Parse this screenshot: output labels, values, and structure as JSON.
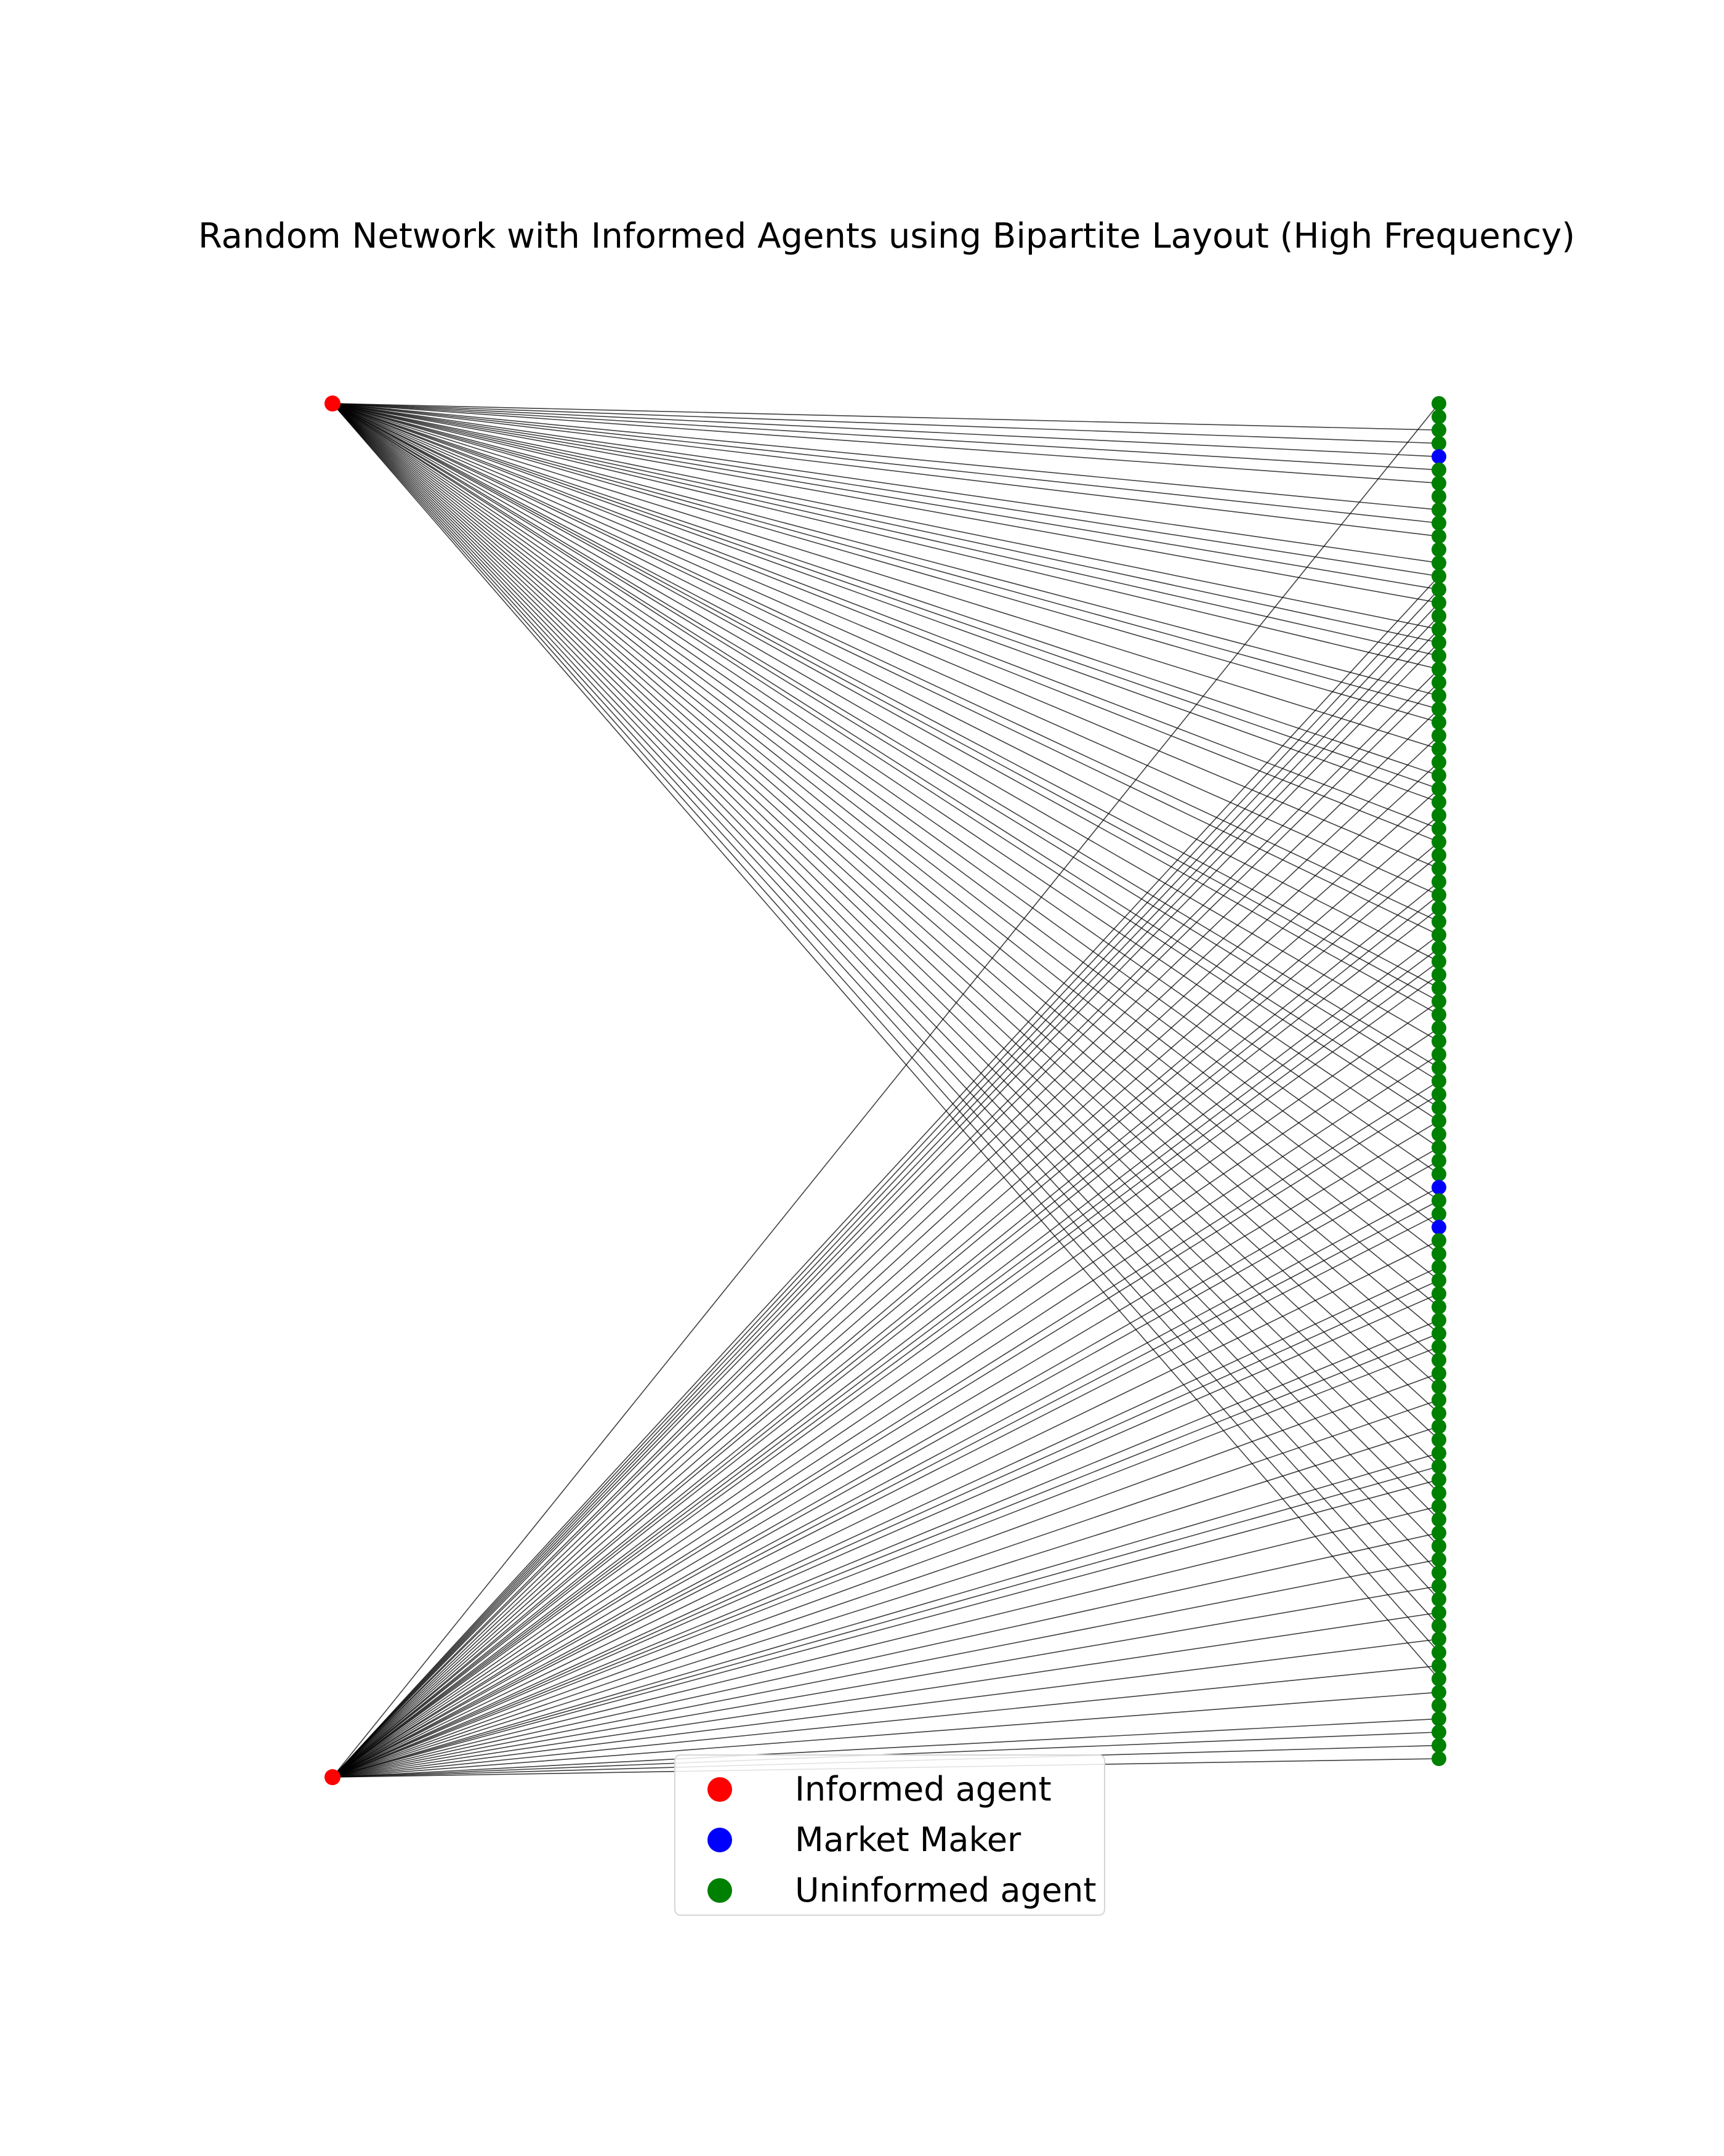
{
  "title": "Random Network with Informed Agents using Bipartite Layout (High Frequency)",
  "colors": {
    "informed": "#ff0000",
    "market_maker": "#0000ff",
    "uninformed": "#008000",
    "edge": "#000000"
  },
  "legend": {
    "items": [
      {
        "label": "Informed agent",
        "color": "#ff0000"
      },
      {
        "label": "Market Maker",
        "color": "#0000ff"
      },
      {
        "label": "Uninformed agent",
        "color": "#008000"
      }
    ]
  },
  "network": {
    "layout": "bipartite",
    "informed_agents": 2,
    "right_nodes": [
      "U",
      "U",
      "U",
      "U",
      "M",
      "U",
      "U",
      "U",
      "U",
      "U",
      "U",
      "U",
      "U",
      "U",
      "U",
      "U",
      "U",
      "U",
      "U",
      "U",
      "U",
      "U",
      "U",
      "U",
      "U",
      "U",
      "U",
      "U",
      "U",
      "U",
      "U",
      "U",
      "U",
      "U",
      "U",
      "U",
      "U",
      "U",
      "U",
      "U",
      "U",
      "U",
      "U",
      "U",
      "U",
      "U",
      "U",
      "U",
      "U",
      "U",
      "U",
      "U",
      "U",
      "U",
      "U",
      "U",
      "U",
      "U",
      "U",
      "M",
      "U",
      "U",
      "M",
      "U",
      "U",
      "U",
      "U",
      "U",
      "U",
      "U",
      "U",
      "U",
      "U",
      "U",
      "U",
      "U",
      "U",
      "U",
      "U",
      "U",
      "U",
      "U",
      "U",
      "U",
      "U",
      "U",
      "U",
      "U",
      "U",
      "U",
      "U",
      "U",
      "U",
      "U",
      "U",
      "U",
      "U",
      "U",
      "U",
      "U",
      "U",
      "U",
      "U"
    ],
    "edges_top": [
      2,
      3,
      4,
      5,
      6,
      8,
      9,
      10,
      12,
      13,
      14,
      15,
      17,
      18,
      19,
      20,
      22,
      23,
      24,
      26,
      28,
      29,
      30,
      32,
      33,
      35,
      37,
      39,
      40,
      42,
      44,
      45,
      46,
      48,
      50,
      51,
      53,
      54,
      56,
      58,
      60,
      62,
      64,
      66,
      68,
      70,
      72,
      74,
      76,
      78,
      80,
      82,
      84,
      86,
      88,
      90,
      92,
      94,
      96
    ],
    "edges_bottom": [
      0,
      13,
      14,
      15,
      16,
      17,
      18,
      20,
      21,
      23,
      25,
      27,
      29,
      31,
      33,
      34,
      36,
      37,
      38,
      40,
      41,
      42,
      43,
      45,
      47,
      49,
      51,
      52,
      54,
      56,
      57,
      59,
      60,
      61,
      63,
      65,
      66,
      67,
      69,
      70,
      71,
      73,
      75,
      77,
      79,
      80,
      81,
      83,
      85,
      87,
      89,
      91,
      93,
      95,
      97,
      99,
      100,
      101,
      102
    ]
  }
}
